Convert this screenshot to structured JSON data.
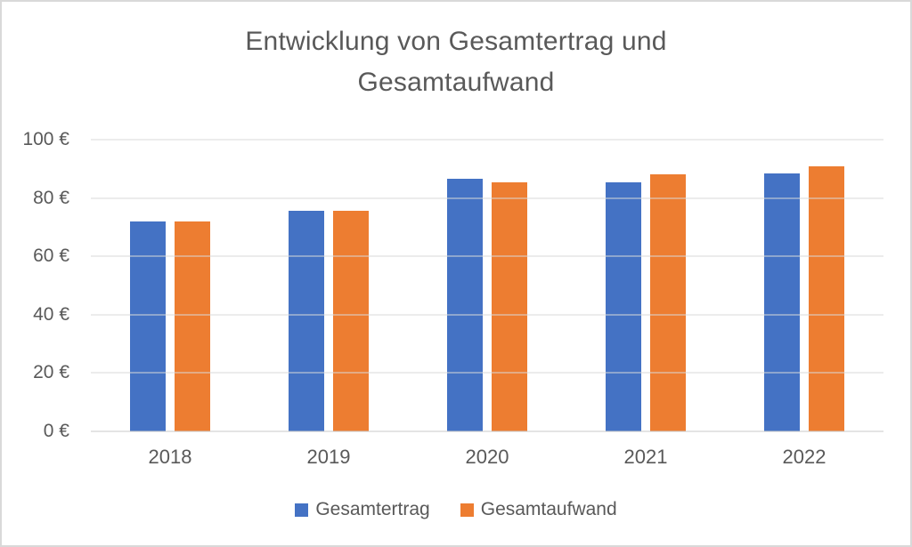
{
  "chart_data": {
    "type": "bar",
    "title": "Entwicklung von Gesamtertrag und Gesamtaufwand",
    "title_lines": [
      "Entwicklung von Gesamtertrag und",
      "Gesamtaufwand"
    ],
    "categories": [
      "2018",
      "2019",
      "2020",
      "2021",
      "2022"
    ],
    "series": [
      {
        "name": "Gesamtertrag",
        "color": "#4472C4",
        "values": [
          72,
          75.5,
          86.5,
          85.5,
          88.5
        ]
      },
      {
        "name": "Gesamtaufwand",
        "color": "#ED7D31",
        "values": [
          72,
          75.5,
          85.5,
          88,
          91
        ]
      }
    ],
    "y_tick_values": [
      0,
      20,
      40,
      60,
      80,
      100
    ],
    "y_tick_labels": [
      "0 €",
      "20 €",
      "40 €",
      "60 €",
      "80 €",
      "100 €"
    ],
    "ylim": [
      0,
      100
    ],
    "xlabel": "",
    "ylabel": "",
    "grid": true,
    "legend_position": "bottom"
  },
  "colors": {
    "bar_blue": "#4472C4",
    "bar_orange": "#ED7D31",
    "title_text": "#595959",
    "axis_text": "#595959",
    "gridline": "#D9D9D9",
    "axis_line": "#C9C9C9",
    "canvas_border": "#D9D9D9",
    "background": "#FFFFFF"
  }
}
